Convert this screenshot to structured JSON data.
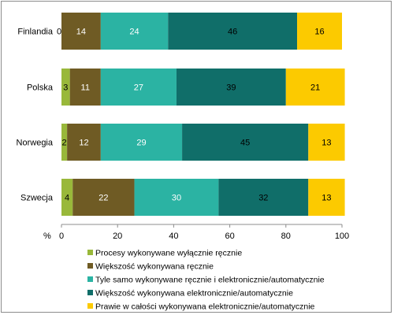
{
  "chart_data": {
    "type": "bar",
    "orientation": "horizontal",
    "stacked": true,
    "categories": [
      "Finlandia",
      "Polska",
      "Norwegia",
      "Szwecja"
    ],
    "series": [
      {
        "name": "Procesy wykonywane wyłącznie ręcznie",
        "color": "#99b83a",
        "label_color": "#000000",
        "values": [
          0,
          3,
          2,
          4
        ]
      },
      {
        "name": "Większość wykonywana ręcznie",
        "color": "#6f5b24",
        "label_color": "#ffffff",
        "values": [
          14,
          11,
          12,
          22
        ]
      },
      {
        "name": "Tyle samo wykonywane ręcznie i elektronicznie/automatycznie",
        "color": "#2bb3a3",
        "label_color": "#ffffff",
        "values": [
          24,
          27,
          29,
          30
        ]
      },
      {
        "name": "Większość wykonywana elektronicznie/automatycznie",
        "color": "#106e69",
        "label_color": "#000000",
        "values": [
          46,
          39,
          45,
          32
        ]
      },
      {
        "name": "Prawie w całości wykonywana elektronicznie/automatycznie",
        "color": "#fcca00",
        "label_color": "#000000",
        "values": [
          16,
          21,
          13,
          13
        ]
      }
    ],
    "xlim": [
      0,
      100
    ],
    "xticks": [
      "0",
      "20",
      "40",
      "60",
      "80",
      "100"
    ],
    "xlabel": "%",
    "legend_position": "bottom"
  }
}
